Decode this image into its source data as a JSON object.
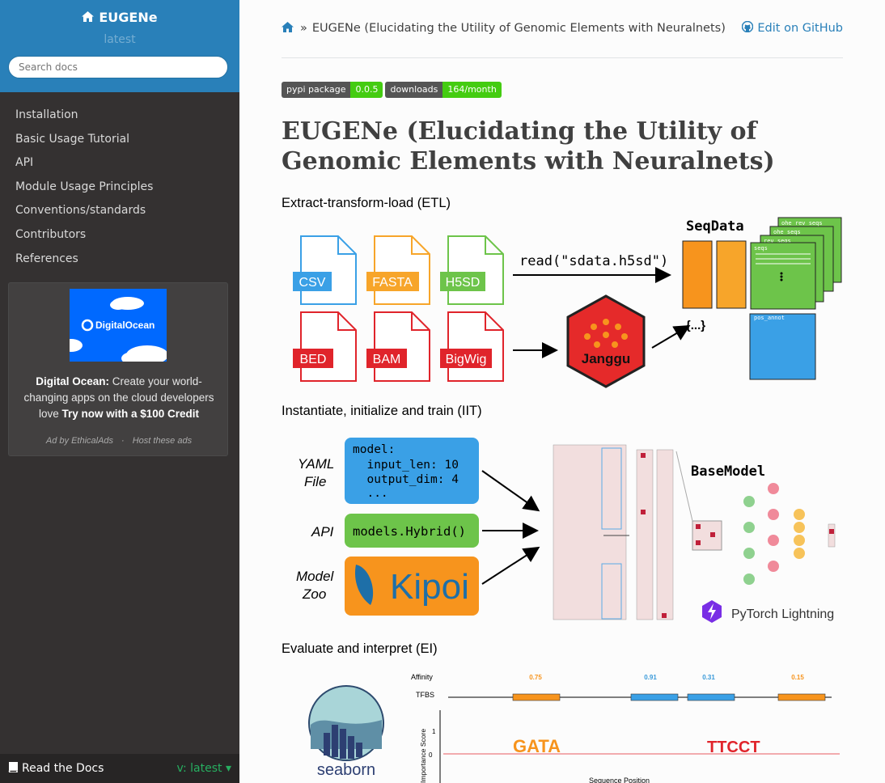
{
  "sidebar": {
    "project": "EUGENe",
    "version": "latest",
    "search_placeholder": "Search docs",
    "items": [
      "Installation",
      "Basic Usage Tutorial",
      "API",
      "Module Usage Principles",
      "Conventions/standards",
      "Contributors",
      "References"
    ],
    "ad": {
      "brand": "DigitalOcean",
      "headline": "Digital Ocean:",
      "body": "Create your world-changing apps on the cloud developers love",
      "cta": "Try now with a $100 Credit",
      "by": "Ad by EthicalAds",
      "host": "Host these ads"
    },
    "footer": {
      "label": "Read the Docs",
      "version": "v: latest"
    }
  },
  "breadcrumb": {
    "current": "EUGENe (Elucidating the Utility of Genomic Elements with Neuralnets)",
    "edit": "Edit on GitHub"
  },
  "badges": [
    {
      "left": "pypi package",
      "right": "0.0.5"
    },
    {
      "left": "downloads",
      "right": "164/month"
    }
  ],
  "title": "EUGENe (Elucidating the Utility of Genomic Elements with Neuralnets)",
  "etl": {
    "heading": "Extract-transform-load (ETL)",
    "formats_top": [
      "CSV",
      "FASTA",
      "H5SD"
    ],
    "formats_bottom": [
      "BED",
      "BAM",
      "BigWig"
    ],
    "read_cmd": "read(\"sdata.h5sd\")",
    "janggu": "Janggu",
    "seqdata": "SeqData",
    "seqs_label": "seqs",
    "rev_seqs": "rev_seqs",
    "ohe_seqs": "ohe_seqs",
    "ohe_rev_seqs": "ohe_rev_seqs",
    "pos_annot": "pos_annot",
    "braces": "{...}"
  },
  "iit": {
    "heading": "Instantiate, initialize and train (IIT)",
    "yaml_label": "YAML File",
    "yaml_code": [
      "model:",
      "  input_len: 10",
      "  output_dim: 4",
      "  ..."
    ],
    "api_label": "API",
    "api_code": "models.Hybrid()",
    "zoo_label": "Model Zoo",
    "kipoi": "Kipoi",
    "basemodel": "BaseModel",
    "lightning": "PyTorch Lightning"
  },
  "ei": {
    "heading": "Evaluate and interpret (EI)",
    "seaborn": "seaborn",
    "affinity_label": "Affinity",
    "tfbs_label": "TFBS",
    "affinities": [
      "0.75",
      "0.91",
      "0.31",
      "0.15"
    ],
    "y_label": "Importance Score",
    "x_label": "Sequence Position",
    "ticks": [
      "1",
      "0"
    ]
  },
  "colors": {
    "accent": "#2980b9",
    "sidebar": "#343131",
    "orange": "#f7941d",
    "blue": "#3aa0e6",
    "green": "#5cc13f",
    "red": "#e0242b"
  }
}
